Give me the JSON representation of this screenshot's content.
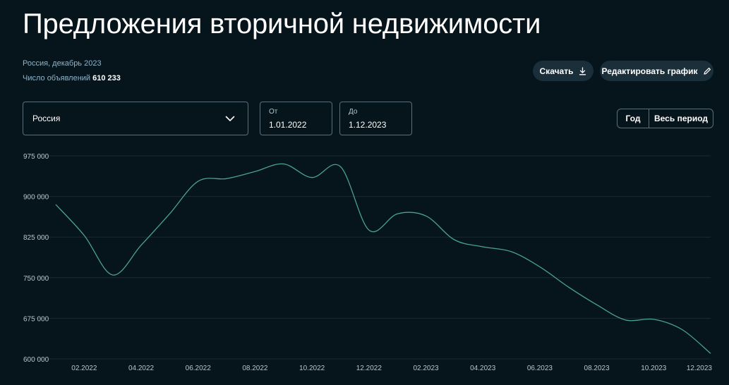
{
  "header": {
    "title": "Предложения вторичной недвижимости",
    "subtitle": "Россия, декабрь 2023",
    "count_label": "Число объявлений",
    "count_value": "610 233"
  },
  "actions": {
    "download_label": "Скачать",
    "download_icon": "download-icon",
    "edit_label": "Редактировать график",
    "edit_icon": "pencil-icon"
  },
  "filters": {
    "region_value": "Россия",
    "region_icon": "chevron-down-icon",
    "from_label": "От",
    "from_value": "1.01.2022",
    "to_label": "До",
    "to_value": "1.12.2023",
    "period_year": "Год",
    "period_all": "Весь период"
  },
  "colors": {
    "background": "#06141b",
    "line": "#4aa38c",
    "grid": "#1c2b33",
    "axis_text": "#b9c6cc"
  },
  "chart_data": {
    "type": "line",
    "title": "",
    "xlabel": "",
    "ylabel": "",
    "ylim": [
      600000,
      975000
    ],
    "yticks": [
      600000,
      675000,
      750000,
      825000,
      900000,
      975000
    ],
    "ytick_labels": [
      "600 000",
      "675 000",
      "750 000",
      "825 000",
      "900 000",
      "975 000"
    ],
    "xlim": [
      "2022-01",
      "2023-12"
    ],
    "xtick_labels": [
      "02.2022",
      "04.2022",
      "06.2022",
      "08.2022",
      "10.2022",
      "12.2022",
      "02.2023",
      "04.2023",
      "06.2023",
      "08.2023",
      "10.2023",
      "12.2023"
    ],
    "grid": true,
    "legend": "none",
    "series": [
      {
        "x": [
          "2022-01",
          "2022-02",
          "2022-03",
          "2022-04",
          "2022-05",
          "2022-06",
          "2022-07",
          "2022-08",
          "2022-09",
          "2022-10",
          "2022-11",
          "2022-12",
          "2023-01",
          "2023-02",
          "2023-03",
          "2023-04",
          "2023-05",
          "2023-06",
          "2023-07",
          "2023-08",
          "2023-09",
          "2023-10",
          "2023-11",
          "2023-12"
        ],
        "values": [
          885000,
          828000,
          755000,
          810000,
          868000,
          928000,
          933000,
          946000,
          960000,
          935000,
          955000,
          838000,
          868000,
          864000,
          820000,
          807000,
          798000,
          770000,
          733000,
          700000,
          672000,
          673000,
          654000,
          610000
        ]
      }
    ]
  }
}
